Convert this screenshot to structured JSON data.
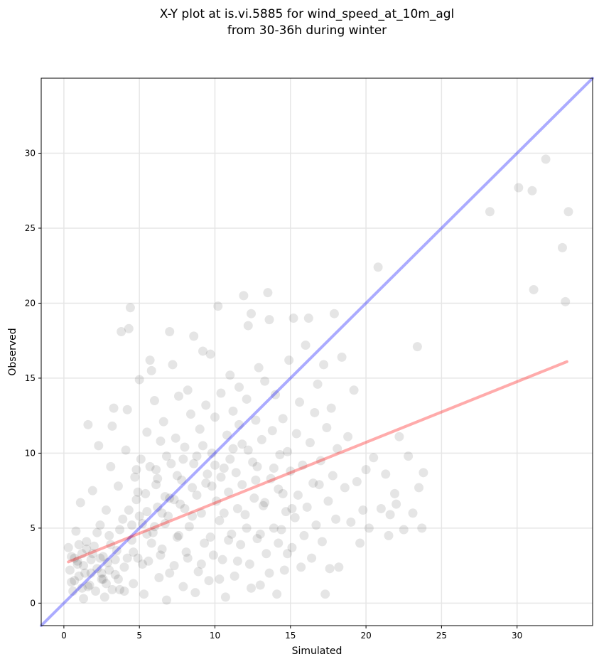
{
  "chart_data": {
    "type": "scatter",
    "title_lines": [
      "X-Y plot at is.vi.5885 for wind_speed_at_10m_agl",
      "from 30-36h during winter"
    ],
    "xlabel": "Simulated",
    "ylabel": "Observed",
    "xlim": [
      -1.5,
      35
    ],
    "ylim": [
      -1.5,
      35
    ],
    "xticks": [
      0,
      5,
      10,
      15,
      20,
      25,
      30
    ],
    "yticks": [
      0,
      5,
      10,
      15,
      20,
      25,
      30
    ],
    "grid": true,
    "colors": {
      "points": "#000000",
      "one_to_one": "#0000ff",
      "regression": "#ff0000",
      "grid": "#e6e6e6"
    },
    "one_to_one_line": {
      "x": [
        -1.5,
        35
      ],
      "y": [
        -1.5,
        35
      ]
    },
    "regression_line": {
      "x": [
        0.3,
        33.3
      ],
      "y": [
        2.75,
        16.1
      ]
    },
    "points": [
      [
        0.3,
        3.7
      ],
      [
        0.4,
        2.2
      ],
      [
        0.5,
        1.4
      ],
      [
        0.6,
        0.8
      ],
      [
        0.7,
        3.0
      ],
      [
        0.8,
        4.8
      ],
      [
        0.9,
        2.6
      ],
      [
        1.0,
        1.8
      ],
      [
        1.1,
        6.7
      ],
      [
        1.2,
        3.3
      ],
      [
        1.3,
        0.3
      ],
      [
        1.4,
        2.0
      ],
      [
        1.5,
        4.1
      ],
      [
        1.6,
        11.9
      ],
      [
        1.7,
        1.2
      ],
      [
        1.8,
        2.9
      ],
      [
        1.9,
        7.5
      ],
      [
        2.0,
        3.8
      ],
      [
        2.1,
        0.8
      ],
      [
        2.2,
        2.3
      ],
      [
        2.3,
        10.5
      ],
      [
        2.4,
        5.2
      ],
      [
        2.5,
        1.6
      ],
      [
        2.6,
        3.1
      ],
      [
        2.7,
        0.4
      ],
      [
        2.8,
        6.2
      ],
      [
        2.9,
        2.7
      ],
      [
        3.0,
        4.5
      ],
      [
        3.1,
        9.1
      ],
      [
        3.2,
        11.8
      ],
      [
        3.3,
        13.0
      ],
      [
        3.4,
        1.9
      ],
      [
        3.5,
        3.5
      ],
      [
        3.6,
        7.8
      ],
      [
        3.7,
        0.9
      ],
      [
        3.8,
        18.1
      ],
      [
        3.9,
        5.6
      ],
      [
        4.0,
        2.4
      ],
      [
        4.1,
        10.2
      ],
      [
        4.2,
        12.9
      ],
      [
        4.3,
        18.3
      ],
      [
        4.4,
        19.7
      ],
      [
        4.5,
        4.2
      ],
      [
        4.6,
        1.3
      ],
      [
        4.7,
        8.4
      ],
      [
        4.8,
        6.9
      ],
      [
        4.9,
        3.0
      ],
      [
        5.0,
        14.9
      ],
      [
        5.1,
        9.6
      ],
      [
        5.2,
        5.3
      ],
      [
        5.3,
        0.6
      ],
      [
        5.4,
        7.3
      ],
      [
        5.5,
        11.4
      ],
      [
        5.6,
        2.8
      ],
      [
        5.7,
        16.2
      ],
      [
        5.8,
        15.5
      ],
      [
        5.9,
        4.7
      ],
      [
        6.0,
        13.5
      ],
      [
        6.1,
        8.9
      ],
      [
        6.2,
        6.4
      ],
      [
        6.3,
        1.7
      ],
      [
        6.4,
        10.8
      ],
      [
        6.5,
        3.6
      ],
      [
        6.6,
        12.1
      ],
      [
        6.7,
        7.1
      ],
      [
        6.8,
        0.2
      ],
      [
        6.9,
        5.8
      ],
      [
        7.0,
        18.1
      ],
      [
        7.1,
        9.3
      ],
      [
        7.2,
        15.9
      ],
      [
        7.3,
        2.5
      ],
      [
        7.4,
        11.0
      ],
      [
        7.5,
        4.4
      ],
      [
        7.6,
        13.8
      ],
      [
        7.7,
        6.6
      ],
      [
        7.8,
        8.2
      ],
      [
        7.9,
        1.1
      ],
      [
        8.0,
        10.4
      ],
      [
        8.1,
        3.4
      ],
      [
        8.2,
        14.2
      ],
      [
        8.3,
        5.1
      ],
      [
        8.4,
        12.6
      ],
      [
        8.5,
        7.7
      ],
      [
        8.6,
        17.8
      ],
      [
        8.7,
        0.7
      ],
      [
        8.8,
        9.8
      ],
      [
        8.9,
        2.1
      ],
      [
        9.0,
        11.6
      ],
      [
        9.1,
        6.0
      ],
      [
        9.2,
        16.8
      ],
      [
        9.3,
        4.0
      ],
      [
        9.4,
        13.2
      ],
      [
        9.5,
        8.6
      ],
      [
        9.6,
        1.5
      ],
      [
        9.7,
        16.6
      ],
      [
        9.8,
        10.0
      ],
      [
        9.9,
        3.2
      ],
      [
        10.0,
        12.4
      ],
      [
        10.1,
        6.8
      ],
      [
        10.2,
        19.8
      ],
      [
        10.3,
        5.5
      ],
      [
        10.4,
        14.0
      ],
      [
        10.5,
        2.9
      ],
      [
        10.6,
        9.0
      ],
      [
        10.7,
        0.4
      ],
      [
        10.8,
        11.2
      ],
      [
        10.9,
        7.4
      ],
      [
        11.0,
        15.2
      ],
      [
        11.1,
        4.6
      ],
      [
        11.2,
        12.8
      ],
      [
        11.3,
        1.8
      ],
      [
        11.4,
        8.7
      ],
      [
        11.5,
        6.3
      ],
      [
        11.6,
        14.4
      ],
      [
        11.7,
        3.9
      ],
      [
        11.8,
        10.6
      ],
      [
        11.9,
        20.5
      ],
      [
        12.0,
        5.9
      ],
      [
        12.1,
        13.6
      ],
      [
        12.2,
        18.5
      ],
      [
        12.3,
        2.6
      ],
      [
        12.4,
        19.3
      ],
      [
        12.5,
        9.4
      ],
      [
        12.6,
        7.0
      ],
      [
        12.7,
        12.2
      ],
      [
        12.8,
        4.3
      ],
      [
        12.9,
        15.7
      ],
      [
        13.0,
        1.2
      ],
      [
        13.1,
        10.9
      ],
      [
        13.2,
        6.5
      ],
      [
        13.3,
        14.8
      ],
      [
        13.4,
        3.3
      ],
      [
        13.5,
        20.7
      ],
      [
        13.6,
        18.9
      ],
      [
        13.7,
        8.3
      ],
      [
        13.8,
        11.5
      ],
      [
        13.9,
        5.0
      ],
      [
        14.0,
        13.9
      ],
      [
        14.1,
        0.6
      ],
      [
        14.2,
        7.6
      ],
      [
        14.3,
        9.9
      ],
      [
        14.4,
        4.9
      ],
      [
        14.5,
        12.3
      ],
      [
        14.6,
        2.2
      ],
      [
        14.7,
        6.1
      ],
      [
        14.8,
        10.1
      ],
      [
        14.9,
        16.2
      ],
      [
        15.0,
        8.8
      ],
      [
        15.1,
        3.7
      ],
      [
        15.2,
        19.0
      ],
      [
        15.3,
        5.7
      ],
      [
        15.4,
        11.3
      ],
      [
        15.5,
        7.2
      ],
      [
        15.6,
        13.4
      ],
      [
        15.7,
        2.4
      ],
      [
        15.8,
        9.2
      ],
      [
        15.9,
        4.5
      ],
      [
        16.0,
        17.2
      ],
      [
        16.1,
        6.4
      ],
      [
        16.2,
        19.0
      ],
      [
        16.3,
        10.7
      ],
      [
        16.4,
        3.0
      ],
      [
        16.5,
        8.0
      ],
      [
        16.6,
        12.7
      ],
      [
        16.7,
        5.2
      ],
      [
        16.8,
        14.6
      ],
      [
        16.9,
        7.9
      ],
      [
        17.0,
        9.5
      ],
      [
        17.1,
        4.1
      ],
      [
        17.2,
        15.9
      ],
      [
        17.3,
        0.6
      ],
      [
        17.4,
        11.7
      ],
      [
        17.5,
        6.8
      ],
      [
        17.6,
        2.3
      ],
      [
        17.7,
        13.0
      ],
      [
        17.8,
        8.5
      ],
      [
        17.9,
        19.3
      ],
      [
        18.0,
        5.6
      ],
      [
        18.1,
        10.3
      ],
      [
        18.2,
        2.4
      ],
      [
        18.4,
        16.4
      ],
      [
        18.6,
        7.7
      ],
      [
        18.8,
        11.1
      ],
      [
        19.0,
        5.4
      ],
      [
        19.2,
        14.2
      ],
      [
        19.4,
        8.1
      ],
      [
        19.6,
        4.0
      ],
      [
        19.8,
        6.2
      ],
      [
        20.0,
        8.9
      ],
      [
        20.2,
        5.0
      ],
      [
        20.5,
        9.7
      ],
      [
        20.8,
        22.4
      ],
      [
        21.0,
        6.3
      ],
      [
        21.3,
        8.6
      ],
      [
        21.6,
        5.9
      ],
      [
        21.9,
        7.3
      ],
      [
        22.2,
        11.1
      ],
      [
        22.5,
        4.9
      ],
      [
        22.8,
        9.8
      ],
      [
        23.1,
        6.0
      ],
      [
        23.4,
        17.1
      ],
      [
        23.7,
        5.0
      ],
      [
        23.8,
        8.7
      ],
      [
        22.0,
        6.6
      ],
      [
        21.5,
        4.5
      ],
      [
        23.5,
        7.7
      ],
      [
        28.2,
        26.1
      ],
      [
        30.1,
        27.7
      ],
      [
        31.0,
        27.5
      ],
      [
        31.1,
        20.9
      ],
      [
        31.9,
        29.6
      ],
      [
        33.0,
        23.7
      ],
      [
        33.2,
        20.1
      ],
      [
        33.4,
        26.1
      ],
      [
        0.5,
        3.1
      ],
      [
        0.7,
        1.5
      ],
      [
        1.0,
        3.9
      ],
      [
        1.3,
        2.5
      ],
      [
        1.6,
        1.1
      ],
      [
        1.9,
        3.3
      ],
      [
        2.2,
        4.7
      ],
      [
        2.5,
        2.0
      ],
      [
        2.8,
        1.3
      ],
      [
        3.1,
        3.9
      ],
      [
        3.4,
        2.9
      ],
      [
        3.7,
        4.9
      ],
      [
        4.0,
        0.8
      ],
      [
        4.3,
        6.2
      ],
      [
        4.6,
        3.4
      ],
      [
        4.9,
        7.4
      ],
      [
        5.2,
        2.6
      ],
      [
        5.5,
        6.1
      ],
      [
        5.8,
        4.0
      ],
      [
        6.1,
        7.9
      ],
      [
        6.4,
        3.2
      ],
      [
        6.7,
        5.3
      ],
      [
        7.0,
        2.0
      ],
      [
        7.3,
        6.9
      ],
      [
        7.6,
        4.5
      ],
      [
        7.9,
        9.6
      ],
      [
        8.2,
        3.0
      ],
      [
        8.5,
        5.8
      ],
      [
        8.8,
        7.2
      ],
      [
        9.1,
        2.6
      ],
      [
        9.4,
        8.0
      ],
      [
        9.7,
        4.4
      ],
      [
        10.0,
        9.2
      ],
      [
        10.3,
        1.6
      ],
      [
        10.6,
        6.0
      ],
      [
        10.9,
        4.2
      ],
      [
        11.2,
        10.3
      ],
      [
        11.5,
        2.8
      ],
      [
        11.8,
        7.9
      ],
      [
        12.1,
        5.0
      ],
      [
        12.4,
        1.0
      ],
      [
        12.7,
        8.2
      ],
      [
        13.0,
        4.6
      ],
      [
        13.3,
        6.7
      ],
      [
        13.6,
        2.0
      ],
      [
        13.9,
        9.0
      ],
      [
        14.2,
        4.0
      ],
      [
        14.5,
        7.3
      ],
      [
        14.8,
        3.3
      ],
      [
        15.1,
        6.3
      ],
      [
        4.5,
        5.2
      ],
      [
        5.0,
        5.8
      ],
      [
        5.5,
        4.6
      ],
      [
        6.0,
        5.1
      ],
      [
        6.5,
        6.0
      ],
      [
        7.0,
        7.0
      ],
      [
        6.2,
        8.3
      ],
      [
        5.7,
        9.1
      ],
      [
        4.8,
        8.9
      ],
      [
        6.8,
        9.8
      ],
      [
        7.5,
        8.5
      ],
      [
        8.0,
        6.3
      ],
      [
        8.6,
        9.3
      ],
      [
        9.2,
        10.5
      ],
      [
        9.8,
        7.8
      ],
      [
        10.4,
        8.4
      ],
      [
        11.0,
        9.6
      ],
      [
        11.6,
        11.9
      ],
      [
        12.2,
        10.2
      ],
      [
        12.8,
        9.1
      ],
      [
        1.2,
        1.0
      ],
      [
        1.8,
        2.0
      ],
      [
        2.4,
        3.0
      ],
      [
        3.0,
        2.2
      ],
      [
        3.6,
        1.6
      ],
      [
        4.2,
        3.0
      ],
      [
        2.6,
        1.6
      ],
      [
        3.2,
        0.9
      ],
      [
        0.9,
        2.8
      ],
      [
        1.5,
        3.6
      ]
    ]
  }
}
